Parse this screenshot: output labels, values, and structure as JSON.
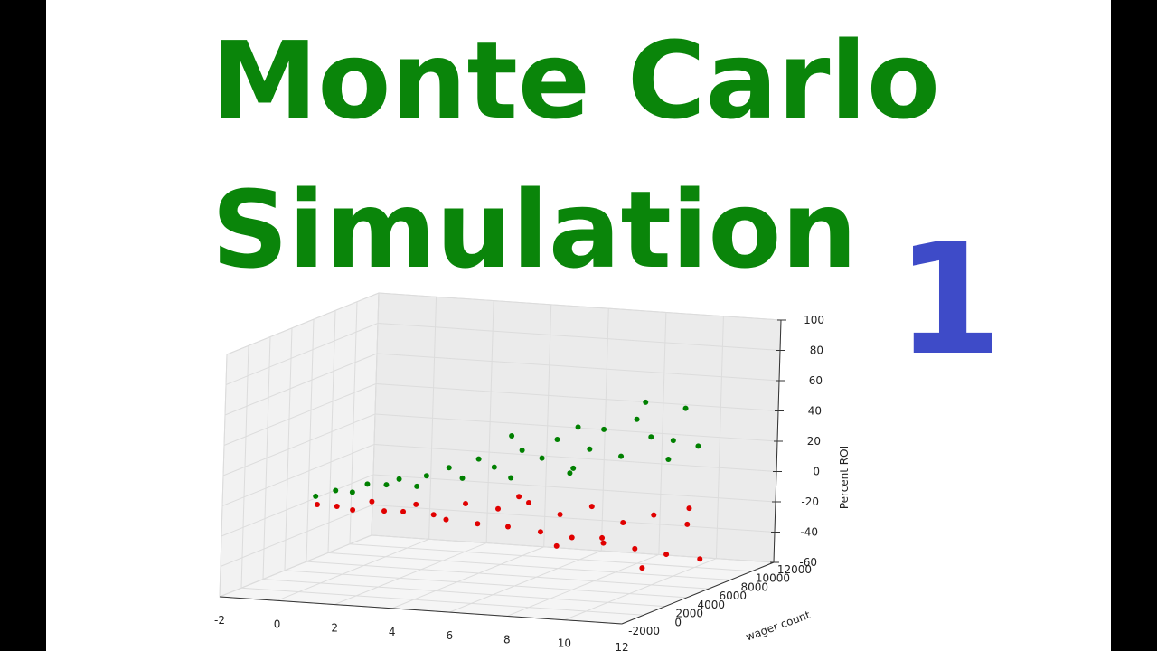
{
  "header": {
    "title_line1": "Monte Carlo",
    "title_line2": "Simulation",
    "episode": "1"
  },
  "chart_data": {
    "type": "scatter3d",
    "ylabel": "wager count",
    "zlabel": "Percent ROI",
    "xlim": [
      -2,
      12
    ],
    "xticks": [
      -2,
      0,
      2,
      4,
      6,
      8,
      10,
      12
    ],
    "ylim": [
      -2000,
      12000
    ],
    "yticks": [
      -2000,
      0,
      2000,
      4000,
      6000,
      8000,
      10000,
      12000
    ],
    "zlim": [
      -60,
      100
    ],
    "zticks": [
      -60,
      -40,
      -20,
      0,
      20,
      40,
      60,
      80,
      100
    ],
    "grid": true,
    "series": [
      {
        "color": "#008000",
        "x": [
          0.3,
          0.8,
          1.2,
          1.6,
          2.0,
          2.4,
          2.8,
          3.2,
          3.6,
          4.0,
          4.4,
          4.8,
          5.2,
          5.6,
          6.0,
          6.4,
          6.8,
          7.2,
          7.6,
          8.0,
          8.4,
          8.8,
          9.2,
          9.6,
          10.0,
          5.0,
          7.0,
          8.5,
          9.5,
          6.5
        ],
        "y": [
          500,
          1000,
          1500,
          1800,
          2500,
          2600,
          3200,
          3000,
          4000,
          4200,
          4600,
          5000,
          5500,
          5400,
          6200,
          6500,
          7000,
          7400,
          7600,
          8200,
          8500,
          8800,
          9400,
          9800,
          10000,
          6000,
          6800,
          9000,
          9000,
          7500
        ],
        "z": [
          2,
          5,
          3,
          8,
          6,
          10,
          4,
          12,
          15,
          8,
          20,
          14,
          6,
          25,
          18,
          30,
          10,
          22,
          35,
          16,
          40,
          28,
          12,
          45,
          20,
          32,
          38,
          50,
          26,
          5
        ]
      },
      {
        "color": "#e00000",
        "x": [
          0.4,
          0.9,
          1.3,
          1.7,
          2.1,
          2.5,
          2.9,
          3.3,
          3.7,
          4.1,
          4.5,
          4.9,
          5.3,
          5.7,
          6.1,
          6.5,
          6.9,
          7.3,
          7.7,
          8.1,
          8.5,
          8.9,
          9.3,
          9.7,
          10.1,
          5.5,
          7.5,
          8.7,
          9.9,
          6.3
        ],
        "y": [
          400,
          900,
          1300,
          2000,
          2100,
          2800,
          2900,
          3500,
          3600,
          4300,
          4400,
          5200,
          5100,
          5900,
          6000,
          6700,
          6800,
          7500,
          7600,
          8300,
          8400,
          9000,
          9200,
          10000,
          10200,
          5500,
          8000,
          8600,
          9600,
          7000
        ],
        "z": [
          -3,
          -5,
          -8,
          -4,
          -10,
          -12,
          -7,
          -15,
          -18,
          -9,
          -22,
          -14,
          -25,
          -11,
          -30,
          -20,
          -35,
          -16,
          -40,
          -28,
          -45,
          -24,
          -50,
          -32,
          -55,
          -6,
          -38,
          -58,
          -20,
          -42
        ]
      }
    ]
  }
}
